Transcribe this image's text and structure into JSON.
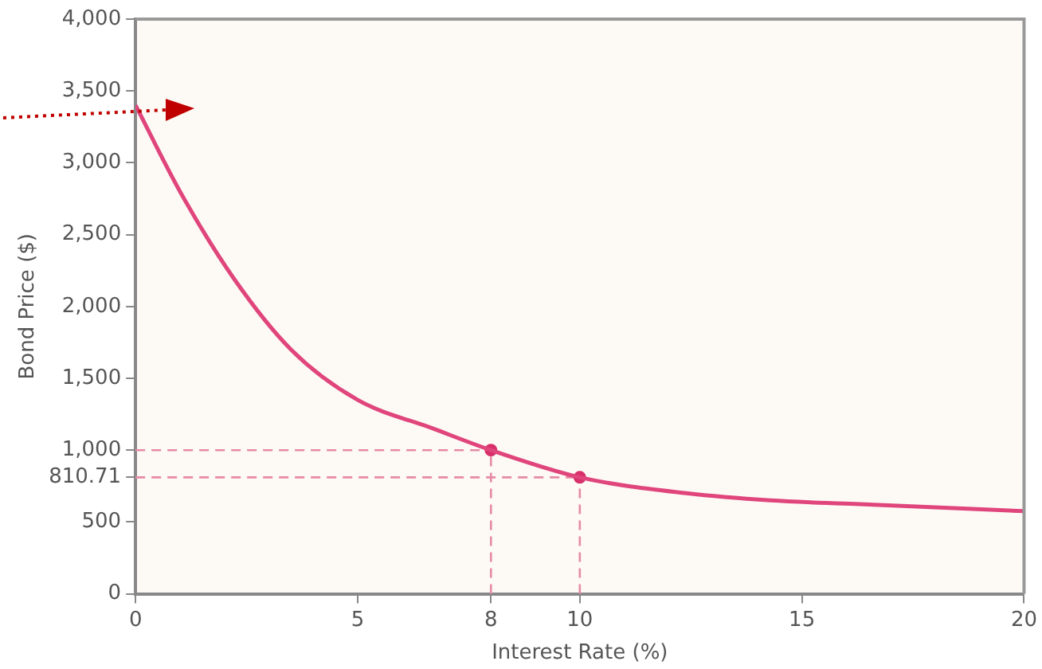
{
  "chart_data": {
    "type": "line",
    "xlabel": "Interest Rate (%)",
    "ylabel": "Bond Price ($)",
    "series": [
      {
        "color": "#e0457b",
        "x": [
          0,
          1,
          2.2,
          3.5,
          5,
          6.7,
          8,
          10,
          12.4,
          14.3,
          16.2,
          18.1,
          20
        ],
        "values": [
          3400,
          2800,
          2200,
          1700,
          1350,
          1150,
          1000,
          810.71,
          700,
          650,
          625,
          600,
          575
        ],
        "marker": "none"
      },
      {
        "type": "scatter",
        "color": "#d8306a",
        "x": [
          8,
          10
        ],
        "values": [
          1000,
          810.71
        ],
        "marker": "circle"
      }
    ],
    "xlim": [
      0,
      20
    ],
    "xticks": [
      0,
      5,
      8,
      10,
      15,
      20
    ],
    "ylim": [
      0,
      4000
    ],
    "yticks": [
      0,
      500,
      810.71,
      {
        "value": 1000,
        "label": "1,000"
      },
      {
        "value": 1500,
        "label": "1,500"
      },
      {
        "value": 2000,
        "label": "2,000"
      },
      {
        "value": 2500,
        "label": "2,500"
      },
      {
        "value": 3000,
        "label": "3,000"
      },
      {
        "value": 3500,
        "label": "3,500"
      },
      {
        "value": 4000,
        "label": "4,000"
      }
    ],
    "ref_lines": [
      {
        "axis": "y",
        "value": 1000,
        "color": "#e68aa5",
        "line_style": "dashed"
      },
      {
        "axis": "y",
        "value": 810.71,
        "color": "#e68aa5",
        "line_style": "dashed"
      },
      {
        "axis": "x",
        "value": 8,
        "color": "#e68aa5",
        "line_style": "dashed"
      },
      {
        "axis": "x",
        "value": 10,
        "color": "#e68aa5",
        "line_style": "dashed"
      }
    ],
    "grid": false,
    "legend": false
  }
}
